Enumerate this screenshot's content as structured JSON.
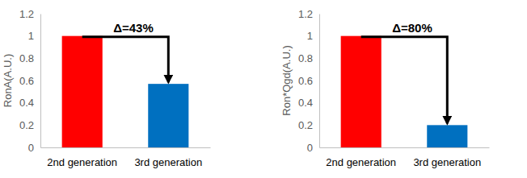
{
  "chart_data": [
    {
      "type": "bar",
      "y_label": "RonA(A.U.)",
      "categories": [
        "2nd generation",
        "3rd generation"
      ],
      "values": [
        1,
        0.57
      ],
      "colors": [
        "#ff0000",
        "#0070c0"
      ],
      "ylim": [
        0,
        1.2
      ],
      "yticks": [
        0,
        0.2,
        0.4,
        0.6,
        0.8,
        1,
        1.2
      ],
      "grid": false,
      "annotation": "Δ=43%"
    },
    {
      "type": "bar",
      "y_label": "Ron*Qgd(A.U.)",
      "categories": [
        "2nd generation",
        "3rd generation"
      ],
      "values": [
        1,
        0.2
      ],
      "colors": [
        "#ff0000",
        "#0070c0"
      ],
      "ylim": [
        0,
        1.2
      ],
      "yticks": [
        0,
        0.2,
        0.4,
        0.6,
        0.8,
        1,
        1.2
      ],
      "grid": false,
      "annotation": "Δ=80%"
    }
  ]
}
